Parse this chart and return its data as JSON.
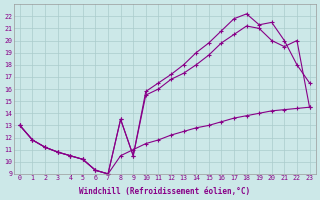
{
  "xlabel": "Windchill (Refroidissement éolien,°C)",
  "xlim": [
    -0.5,
    23.5
  ],
  "ylim": [
    9,
    23
  ],
  "xticks": [
    0,
    1,
    2,
    3,
    4,
    5,
    6,
    7,
    8,
    9,
    10,
    11,
    12,
    13,
    14,
    15,
    16,
    17,
    18,
    19,
    20,
    21,
    22,
    23
  ],
  "yticks": [
    9,
    10,
    11,
    12,
    13,
    14,
    15,
    16,
    17,
    18,
    19,
    20,
    21,
    22
  ],
  "bg_color": "#cce8e8",
  "line_color": "#880088",
  "grid_color": "#aacccc",
  "line1_x": [
    0,
    1,
    2,
    3,
    4,
    5,
    6,
    7,
    8,
    9,
    10,
    11,
    12,
    13,
    14,
    15,
    16,
    17,
    18,
    19,
    20,
    21,
    22,
    23
  ],
  "line1_y": [
    13.0,
    11.8,
    11.2,
    10.8,
    10.5,
    10.2,
    9.3,
    9.0,
    13.5,
    10.5,
    15.8,
    16.5,
    17.2,
    18.0,
    19.0,
    19.8,
    20.8,
    21.8,
    22.2,
    21.3,
    21.5,
    20.0,
    18.0,
    16.5
  ],
  "line2_x": [
    0,
    1,
    2,
    3,
    4,
    5,
    6,
    7,
    8,
    9,
    10,
    11,
    12,
    13,
    14,
    15,
    16,
    17,
    18,
    19,
    20,
    21,
    22,
    23
  ],
  "line2_y": [
    13.0,
    11.8,
    11.2,
    10.8,
    10.5,
    10.2,
    9.3,
    9.0,
    13.5,
    10.5,
    15.5,
    16.0,
    16.8,
    17.3,
    18.0,
    18.8,
    19.8,
    20.5,
    21.2,
    21.0,
    20.0,
    19.5,
    20.0,
    14.5
  ],
  "line3_x": [
    0,
    1,
    2,
    3,
    4,
    5,
    6,
    7,
    8,
    9,
    10,
    11,
    12,
    13,
    14,
    15,
    16,
    17,
    18,
    19,
    20,
    21,
    22,
    23
  ],
  "line3_y": [
    13.0,
    11.8,
    11.2,
    10.8,
    10.5,
    10.2,
    9.3,
    9.0,
    10.5,
    11.0,
    11.5,
    11.8,
    12.2,
    12.5,
    12.8,
    13.0,
    13.3,
    13.6,
    13.8,
    14.0,
    14.2,
    14.3,
    14.4,
    14.5
  ]
}
